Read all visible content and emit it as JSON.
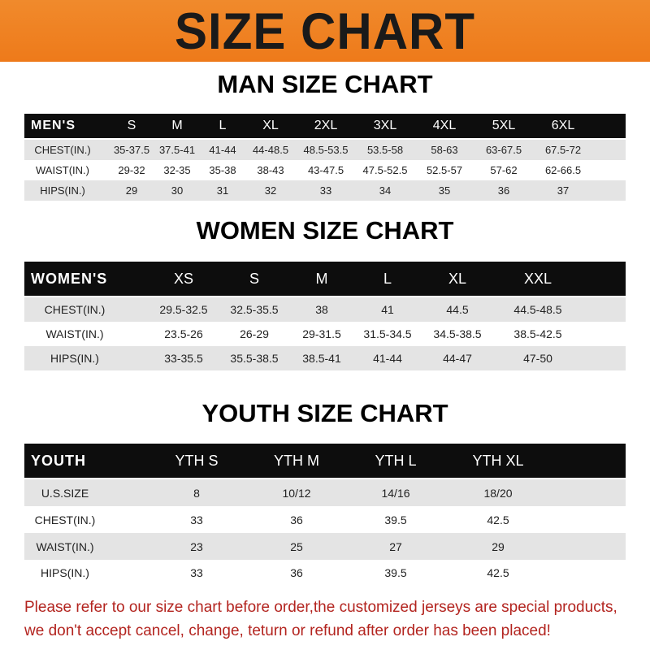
{
  "banner": {
    "title": "SIZE CHART",
    "color": "#ef8223"
  },
  "men": {
    "title": "MAN SIZE CHART",
    "header": [
      "MEN'S",
      "S",
      "M",
      "L",
      "XL",
      "2XL",
      "3XL",
      "4XL",
      "5XL",
      "6XL"
    ],
    "rows": [
      [
        "CHEST(IN.)",
        "35-37.5",
        "37.5-41",
        "41-44",
        "44-48.5",
        "48.5-53.5",
        "53.5-58",
        "58-63",
        "63-67.5",
        "67.5-72"
      ],
      [
        "WAIST(IN.)",
        "29-32",
        "32-35",
        "35-38",
        "38-43",
        "43-47.5",
        "47.5-52.5",
        "52.5-57",
        "57-62",
        "62-66.5"
      ],
      [
        "HIPS(IN.)",
        "29",
        "30",
        "31",
        "32",
        "33",
        "34",
        "35",
        "36",
        "37"
      ]
    ]
  },
  "women": {
    "title": "WOMEN SIZE CHART",
    "header": [
      "WOMEN'S",
      "XS",
      "S",
      "M",
      "L",
      "XL",
      "XXL"
    ],
    "rows": [
      [
        "CHEST(IN.)",
        "29.5-32.5",
        "32.5-35.5",
        "38",
        "41",
        "44.5",
        "44.5-48.5"
      ],
      [
        "WAIST(IN.)",
        "23.5-26",
        "26-29",
        "29-31.5",
        "31.5-34.5",
        "34.5-38.5",
        "38.5-42.5"
      ],
      [
        "HIPS(IN.)",
        "33-35.5",
        "35.5-38.5",
        "38.5-41",
        "41-44",
        "44-47",
        "47-50"
      ]
    ]
  },
  "youth": {
    "title": "YOUTH SIZE CHART",
    "header": [
      "YOUTH",
      "YTH S",
      "YTH M",
      "YTH L",
      "YTH XL"
    ],
    "rows": [
      [
        "U.S.SIZE",
        "8",
        "10/12",
        "14/16",
        "18/20"
      ],
      [
        "CHEST(IN.)",
        "33",
        "36",
        "39.5",
        "42.5"
      ],
      [
        "WAIST(IN.)",
        "23",
        "25",
        "27",
        "29"
      ],
      [
        "HIPS(IN.)",
        "33",
        "36",
        "39.5",
        "42.5"
      ]
    ]
  },
  "footer": {
    "line1": "Please refer to our size chart before order,the customized jerseys are special products,",
    "line2": "we don't accept cancel, change, teturn or refund after order has been placed!",
    "color": "#b3241f"
  }
}
